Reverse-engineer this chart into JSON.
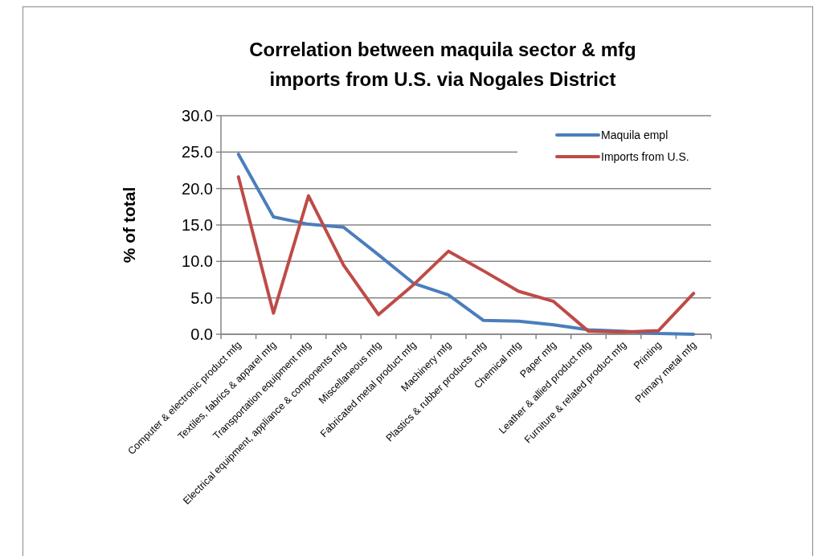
{
  "chart_data": {
    "type": "line",
    "title": "Correlation between maquila sector & mfg imports from U.S. via Nogales District",
    "ylabel": "% of total",
    "categories": [
      "Computer & electronic product mfg",
      "Textiles, fabrics & apparel mfg",
      "Transportation equipment mfg",
      "Electrical equipment, appliance & components mfg",
      "Miscellaneous mfg",
      "Fabricated metal product mfg",
      "Machinery mfg",
      "Plastics & rubber products mfg",
      "Chemical mfg",
      "Paper mfg",
      "Leather & allied product mfg",
      "Furniture & related product mfg",
      "Printing",
      "Primary metal mfg"
    ],
    "series": [
      {
        "name": "Maquila empl",
        "color": "#4a7ebb",
        "values": [
          24.7,
          16.1,
          15.1,
          14.7,
          10.9,
          7.0,
          5.4,
          1.9,
          1.8,
          1.3,
          0.6,
          0.4,
          0.1,
          0.0
        ]
      },
      {
        "name": "Imports from U.S.",
        "color": "#be4b48",
        "values": [
          21.6,
          2.9,
          19.0,
          9.5,
          2.7,
          6.8,
          11.4,
          8.7,
          5.9,
          4.5,
          0.4,
          0.3,
          0.5,
          5.6
        ]
      }
    ],
    "ylim": [
      0,
      30
    ],
    "yticks": [
      {
        "value": 0,
        "label": "0.0"
      },
      {
        "value": 5,
        "label": "5.0"
      },
      {
        "value": 10,
        "label": "10.0"
      },
      {
        "value": 15,
        "label": "15.0"
      },
      {
        "value": 20,
        "label": "20.0"
      },
      {
        "value": 25,
        "label": "25.0"
      },
      {
        "value": 30,
        "label": "30.0"
      }
    ],
    "grid": "y",
    "legend": "top right",
    "marker": "none",
    "line_style": "solid"
  }
}
